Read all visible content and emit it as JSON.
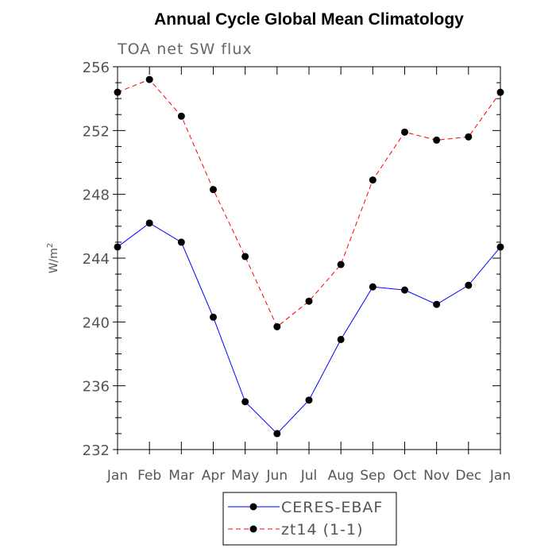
{
  "chart_data": {
    "type": "line",
    "title": "Annual Cycle Global Mean Climatology",
    "subtitle": "TOA net SW flux",
    "ylabel": "W/m",
    "ylabel_superscript": "2",
    "xlabel": "",
    "categories": [
      "Jan",
      "Feb",
      "Mar",
      "Apr",
      "May",
      "Jun",
      "Jul",
      "Aug",
      "Sep",
      "Oct",
      "Nov",
      "Dec",
      "Jan"
    ],
    "ylim": [
      232,
      256
    ],
    "yticks": [
      "232",
      "236",
      "240",
      "244",
      "248",
      "252",
      "256"
    ],
    "legend_position": "bottom",
    "grid": false,
    "series": [
      {
        "name": "CERES-EBAF",
        "color": "#0000ff",
        "dashed": false,
        "marker": "dot",
        "values": [
          244.7,
          246.2,
          245.0,
          240.3,
          235.0,
          233.0,
          235.1,
          238.9,
          242.2,
          242.0,
          241.1,
          242.3,
          244.7
        ]
      },
      {
        "name": "zt14 (1-1)",
        "color": "#ff0000",
        "dashed": true,
        "marker": "dot",
        "values": [
          254.4,
          255.2,
          252.9,
          248.3,
          244.1,
          239.7,
          241.3,
          243.6,
          248.9,
          251.9,
          251.4,
          251.6,
          254.4
        ]
      }
    ]
  }
}
